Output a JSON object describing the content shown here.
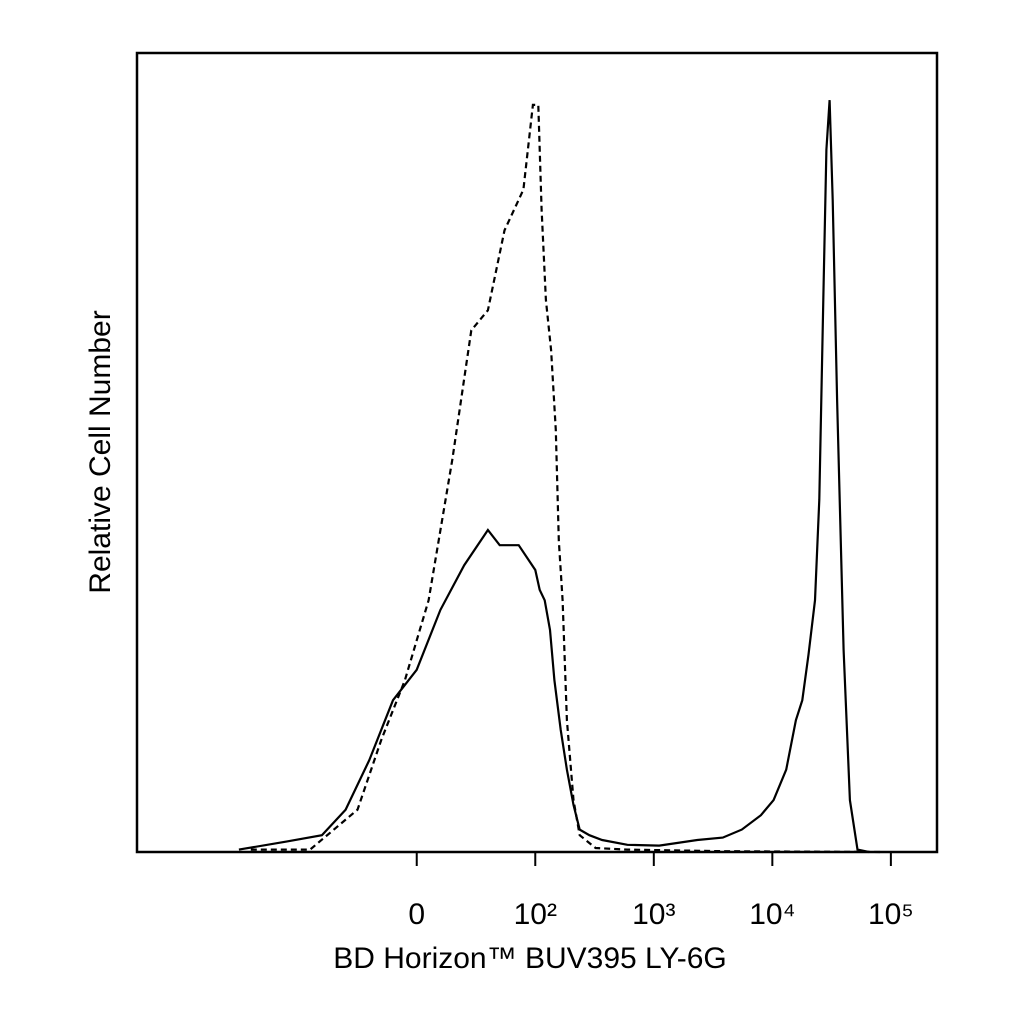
{
  "chart_data": {
    "type": "line",
    "xscale": "biexponential",
    "xlabel": "BD Horizon™ BUV395 LY-6G",
    "ylabel": "Relative Cell Number",
    "xlim": [
      -236,
      245000
    ],
    "ylim": [
      0,
      100
    ],
    "xticks": [
      0,
      {
        "value": 100,
        "label": "10²"
      },
      {
        "value": 1000,
        "label": "10³"
      },
      {
        "value": 10000,
        "label": "10⁴"
      },
      {
        "value": 100000,
        "label": "10⁵"
      }
    ],
    "series": [
      {
        "color": "#000000",
        "dashed": false,
        "x": [
          -150,
          -110,
          -80,
          -60,
          -40,
          -20,
          0,
          20,
          40,
          60,
          70,
          86,
          100,
          109,
          120,
          133,
          145,
          164,
          185,
          210,
          237,
          286,
          366,
          599,
          1110,
          2330,
          3820,
          5530,
          8000,
          10250,
          13100,
          15800,
          17900,
          20200,
          22900,
          24900,
          26900,
          28600,
          30400,
          32300,
          35200,
          39900,
          45100,
          52300,
          65300
        ],
        "values": [
          0.3,
          1.3,
          2.1,
          5.3,
          11.5,
          19,
          22.8,
          30.3,
          35.9,
          40.3,
          38.4,
          38.4,
          35.3,
          32.8,
          31.5,
          27.8,
          21.5,
          15.3,
          10.3,
          5.9,
          2.8,
          2.1,
          1.5,
          0.9,
          0.8,
          1.5,
          1.8,
          2.8,
          4.6,
          6.5,
          10.3,
          16.5,
          19,
          24.7,
          31.5,
          44.1,
          69.1,
          87.9,
          94.1,
          81.6,
          56.6,
          25.3,
          6.5,
          0.3,
          0
        ]
      },
      {
        "color": "#000000",
        "dashed": true,
        "x": [
          -140,
          -90,
          -50,
          -30,
          -10,
          10,
          30,
          46,
          60,
          74,
          90,
          98,
          106,
          113,
          123,
          136,
          149,
          158,
          170,
          185,
          210,
          237,
          323,
          599,
          3820,
          83600
        ],
        "values": [
          0.3,
          0.3,
          5.3,
          14,
          21.5,
          31.5,
          49.1,
          65.3,
          67.8,
          77.8,
          82.9,
          93.5,
          93.5,
          80.4,
          69.1,
          62.8,
          52.8,
          39,
          31.5,
          16.5,
          6.5,
          2.1,
          0.5,
          0.3,
          0.1,
          0
        ]
      }
    ]
  }
}
